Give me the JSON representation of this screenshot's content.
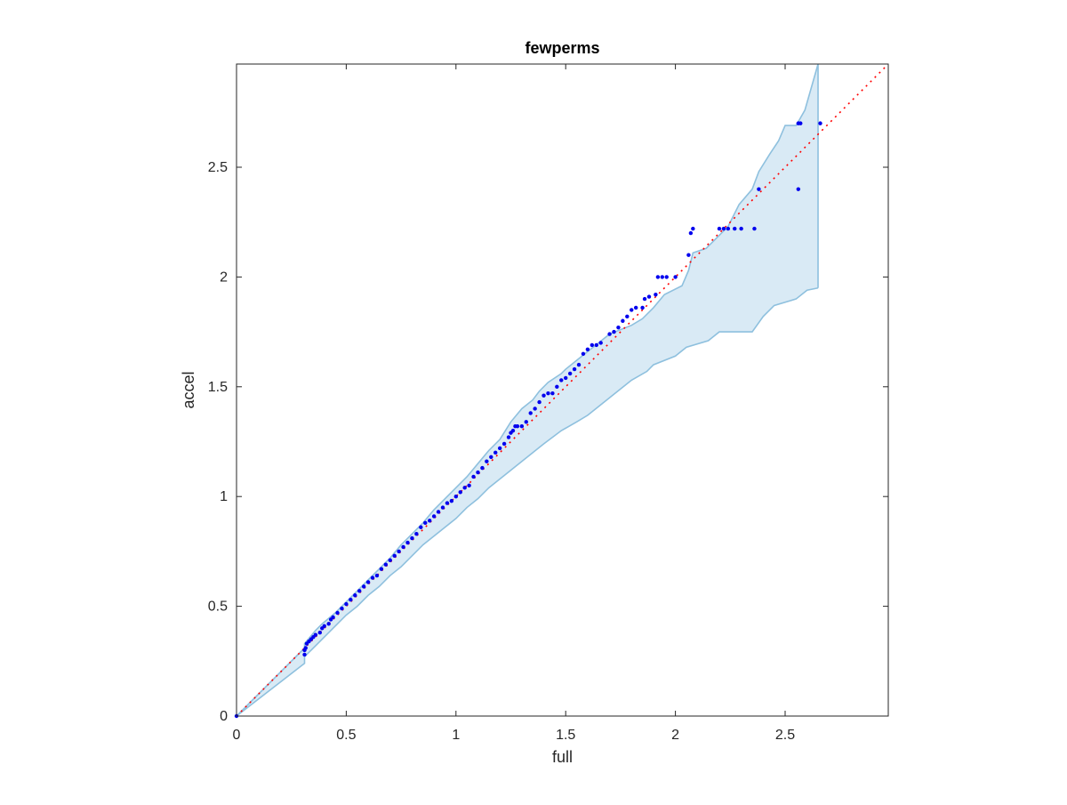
{
  "chart_data": {
    "type": "scatter",
    "title": "fewperms",
    "xlabel": "full",
    "ylabel": "accel",
    "xlim": [
      0,
      2.97
    ],
    "ylim": [
      0,
      2.97
    ],
    "xticks": [
      "0",
      "0.5",
      "1",
      "1.5",
      "2",
      "2.5"
    ],
    "yticks": [
      "0",
      "0.5",
      "1",
      "1.5",
      "2",
      "2.5"
    ],
    "grid": false,
    "legend": "none",
    "colors": {
      "points": "#0000ee",
      "reference_line": "#ff0000",
      "band_fill": "#d9eaf5",
      "band_edge": "#8ec0de",
      "axes": "#262626"
    },
    "reference_line": {
      "style": "dotted",
      "from": [
        0,
        0
      ],
      "to": [
        2.97,
        2.97
      ]
    },
    "confidence_band": {
      "upper": [
        [
          0,
          0
        ],
        [
          0.31,
          0.31
        ],
        [
          0.31,
          0.33
        ],
        [
          0.36,
          0.39
        ],
        [
          0.39,
          0.42
        ],
        [
          0.45,
          0.47
        ],
        [
          0.5,
          0.52
        ],
        [
          0.55,
          0.57
        ],
        [
          0.6,
          0.62
        ],
        [
          0.65,
          0.67
        ],
        [
          0.7,
          0.72
        ],
        [
          0.75,
          0.78
        ],
        [
          0.8,
          0.83
        ],
        [
          0.85,
          0.88
        ],
        [
          0.9,
          0.94
        ],
        [
          0.95,
          0.99
        ],
        [
          1.0,
          1.04
        ],
        [
          1.05,
          1.09
        ],
        [
          1.1,
          1.15
        ],
        [
          1.15,
          1.21
        ],
        [
          1.2,
          1.26
        ],
        [
          1.25,
          1.34
        ],
        [
          1.3,
          1.4
        ],
        [
          1.35,
          1.44
        ],
        [
          1.38,
          1.48
        ],
        [
          1.42,
          1.52
        ],
        [
          1.48,
          1.56
        ],
        [
          1.5,
          1.58
        ],
        [
          1.55,
          1.62
        ],
        [
          1.6,
          1.66
        ],
        [
          1.65,
          1.7
        ],
        [
          1.7,
          1.74
        ],
        [
          1.8,
          1.78
        ],
        [
          1.85,
          1.81
        ],
        [
          1.9,
          1.86
        ],
        [
          1.95,
          1.92
        ],
        [
          2.03,
          1.96
        ],
        [
          2.06,
          2.03
        ],
        [
          2.08,
          2.11
        ],
        [
          2.14,
          2.13
        ],
        [
          2.18,
          2.17
        ],
        [
          2.24,
          2.23
        ],
        [
          2.29,
          2.33
        ],
        [
          2.35,
          2.4
        ],
        [
          2.38,
          2.48
        ],
        [
          2.43,
          2.56
        ],
        [
          2.47,
          2.62
        ],
        [
          2.5,
          2.69
        ],
        [
          2.55,
          2.69
        ],
        [
          2.59,
          2.76
        ],
        [
          2.65,
          2.97
        ]
      ],
      "lower": [
        [
          0,
          0
        ],
        [
          0.31,
          0.24
        ],
        [
          0.31,
          0.27
        ],
        [
          0.36,
          0.32
        ],
        [
          0.4,
          0.36
        ],
        [
          0.45,
          0.41
        ],
        [
          0.5,
          0.46
        ],
        [
          0.55,
          0.5
        ],
        [
          0.6,
          0.55
        ],
        [
          0.65,
          0.59
        ],
        [
          0.7,
          0.64
        ],
        [
          0.75,
          0.68
        ],
        [
          0.8,
          0.73
        ],
        [
          0.85,
          0.78
        ],
        [
          0.9,
          0.82
        ],
        [
          0.95,
          0.86
        ],
        [
          1.0,
          0.9
        ],
        [
          1.05,
          0.95
        ],
        [
          1.1,
          0.99
        ],
        [
          1.15,
          1.04
        ],
        [
          1.2,
          1.08
        ],
        [
          1.25,
          1.12
        ],
        [
          1.3,
          1.16
        ],
        [
          1.35,
          1.2
        ],
        [
          1.4,
          1.24
        ],
        [
          1.48,
          1.3
        ],
        [
          1.55,
          1.34
        ],
        [
          1.6,
          1.37
        ],
        [
          1.65,
          1.41
        ],
        [
          1.7,
          1.45
        ],
        [
          1.75,
          1.49
        ],
        [
          1.8,
          1.53
        ],
        [
          1.87,
          1.57
        ],
        [
          1.9,
          1.6
        ],
        [
          2.0,
          1.64
        ],
        [
          2.05,
          1.68
        ],
        [
          2.15,
          1.71
        ],
        [
          2.2,
          1.75
        ],
        [
          2.35,
          1.75
        ],
        [
          2.4,
          1.82
        ],
        [
          2.45,
          1.87
        ],
        [
          2.55,
          1.9
        ],
        [
          2.6,
          1.94
        ],
        [
          2.65,
          1.95
        ]
      ]
    },
    "series": [
      {
        "x": [
          0,
          0.31,
          0.31,
          0.315,
          0.32,
          0.33,
          0.34,
          0.35,
          0.36,
          0.38,
          0.39,
          0.4,
          0.42,
          0.43,
          0.44,
          0.46,
          0.48,
          0.5,
          0.52,
          0.54,
          0.56,
          0.58,
          0.6,
          0.62,
          0.64,
          0.66,
          0.68,
          0.7,
          0.72,
          0.74,
          0.76,
          0.78,
          0.8,
          0.82,
          0.84,
          0.86,
          0.88,
          0.9,
          0.92,
          0.94,
          0.96,
          0.98,
          1.0,
          1.02,
          1.04,
          1.06,
          1.08,
          1.1,
          1.12,
          1.14,
          1.16,
          1.18,
          1.2,
          1.22,
          1.24,
          1.25,
          1.26,
          1.27,
          1.28,
          1.3,
          1.32,
          1.34,
          1.36,
          1.38,
          1.4,
          1.42,
          1.44,
          1.46,
          1.48,
          1.5,
          1.52,
          1.54,
          1.56,
          1.58,
          1.6,
          1.62,
          1.64,
          1.66,
          1.7,
          1.72,
          1.74,
          1.76,
          1.78,
          1.8,
          1.82,
          1.85,
          1.86,
          1.88,
          1.91,
          1.92,
          1.94,
          1.96,
          2.0,
          2.06,
          2.07,
          2.08,
          2.2,
          2.22,
          2.24,
          2.27,
          2.3,
          2.36,
          2.38,
          2.56,
          2.56,
          2.57,
          2.66
        ],
        "y": [
          0,
          0.28,
          0.3,
          0.31,
          0.33,
          0.34,
          0.35,
          0.36,
          0.37,
          0.38,
          0.4,
          0.41,
          0.42,
          0.44,
          0.45,
          0.47,
          0.49,
          0.51,
          0.53,
          0.55,
          0.57,
          0.59,
          0.61,
          0.63,
          0.64,
          0.67,
          0.69,
          0.71,
          0.73,
          0.75,
          0.77,
          0.79,
          0.81,
          0.83,
          0.86,
          0.88,
          0.89,
          0.91,
          0.93,
          0.95,
          0.97,
          0.98,
          1.0,
          1.02,
          1.04,
          1.05,
          1.09,
          1.11,
          1.13,
          1.16,
          1.18,
          1.2,
          1.22,
          1.24,
          1.27,
          1.29,
          1.3,
          1.32,
          1.32,
          1.32,
          1.34,
          1.38,
          1.4,
          1.43,
          1.46,
          1.47,
          1.47,
          1.5,
          1.53,
          1.54,
          1.56,
          1.58,
          1.6,
          1.65,
          1.67,
          1.69,
          1.69,
          1.7,
          1.74,
          1.75,
          1.77,
          1.8,
          1.82,
          1.85,
          1.86,
          1.86,
          1.9,
          1.91,
          1.92,
          2.0,
          2.0,
          2.0,
          2.0,
          2.1,
          2.2,
          2.22,
          2.22,
          2.22,
          2.22,
          2.22,
          2.22,
          2.22,
          2.4,
          2.4,
          2.7,
          2.7,
          2.7
        ]
      }
    ]
  }
}
